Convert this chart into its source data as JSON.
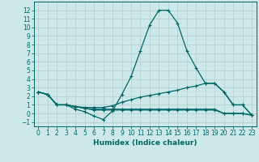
{
  "xlabel": "Humidex (Indice chaleur)",
  "ylabel": "",
  "background_color": "#cde8e8",
  "grid_color": "#b0cccc",
  "line_color": "#006666",
  "spine_color": "#006666",
  "xlim": [
    -0.5,
    23.5
  ],
  "ylim": [
    -1.5,
    13.0
  ],
  "xticks": [
    0,
    1,
    2,
    3,
    4,
    5,
    6,
    7,
    8,
    9,
    10,
    11,
    12,
    13,
    14,
    15,
    16,
    17,
    18,
    19,
    20,
    21,
    22,
    23
  ],
  "yticks": [
    -1,
    0,
    1,
    2,
    3,
    4,
    5,
    6,
    7,
    8,
    9,
    10,
    11,
    12
  ],
  "line1_x": [
    0,
    1,
    2,
    3,
    4,
    5,
    6,
    7,
    8,
    9,
    10,
    11,
    12,
    13,
    14,
    15,
    16,
    17,
    18,
    19,
    20,
    21,
    22,
    23
  ],
  "line1_y": [
    2.5,
    2.2,
    1.0,
    1.0,
    0.5,
    0.2,
    -0.3,
    -0.7,
    0.3,
    2.2,
    4.3,
    7.3,
    10.3,
    12.0,
    12.0,
    10.5,
    7.3,
    5.3,
    3.5,
    3.5,
    2.5,
    1.0,
    1.0,
    -0.2
  ],
  "line2_x": [
    0,
    1,
    2,
    3,
    4,
    5,
    6,
    7,
    8,
    9,
    10,
    11,
    12,
    13,
    14,
    15,
    16,
    17,
    18,
    19,
    20,
    21,
    22,
    23
  ],
  "line2_y": [
    2.5,
    2.2,
    1.0,
    1.0,
    0.8,
    0.7,
    0.7,
    0.7,
    0.9,
    1.3,
    1.6,
    1.9,
    2.1,
    2.3,
    2.5,
    2.7,
    3.0,
    3.2,
    3.5,
    3.5,
    2.5,
    1.0,
    1.0,
    -0.2
  ],
  "line3_x": [
    0,
    1,
    2,
    3,
    4,
    5,
    6,
    7,
    8,
    9,
    10,
    11,
    12,
    13,
    14,
    15,
    16,
    17,
    18,
    19,
    20,
    21,
    22,
    23
  ],
  "line3_y": [
    2.5,
    2.2,
    1.0,
    1.0,
    0.8,
    0.6,
    0.5,
    0.5,
    0.5,
    0.5,
    0.5,
    0.5,
    0.5,
    0.5,
    0.5,
    0.5,
    0.5,
    0.5,
    0.5,
    0.5,
    0.0,
    0.0,
    0.0,
    -0.2
  ],
  "line4_x": [
    0,
    1,
    2,
    3,
    4,
    5,
    6,
    7,
    8,
    9,
    10,
    11,
    12,
    13,
    14,
    15,
    16,
    17,
    18,
    19,
    20,
    21,
    22,
    23
  ],
  "line4_y": [
    2.5,
    2.2,
    1.0,
    1.0,
    0.8,
    0.6,
    0.4,
    0.4,
    0.4,
    0.4,
    0.4,
    0.4,
    0.4,
    0.4,
    0.4,
    0.4,
    0.4,
    0.4,
    0.4,
    0.4,
    0.0,
    0.0,
    0.0,
    -0.2
  ],
  "tick_fontsize": 5.5,
  "xlabel_fontsize": 6.5,
  "lw": 0.9,
  "ms": 2.8
}
